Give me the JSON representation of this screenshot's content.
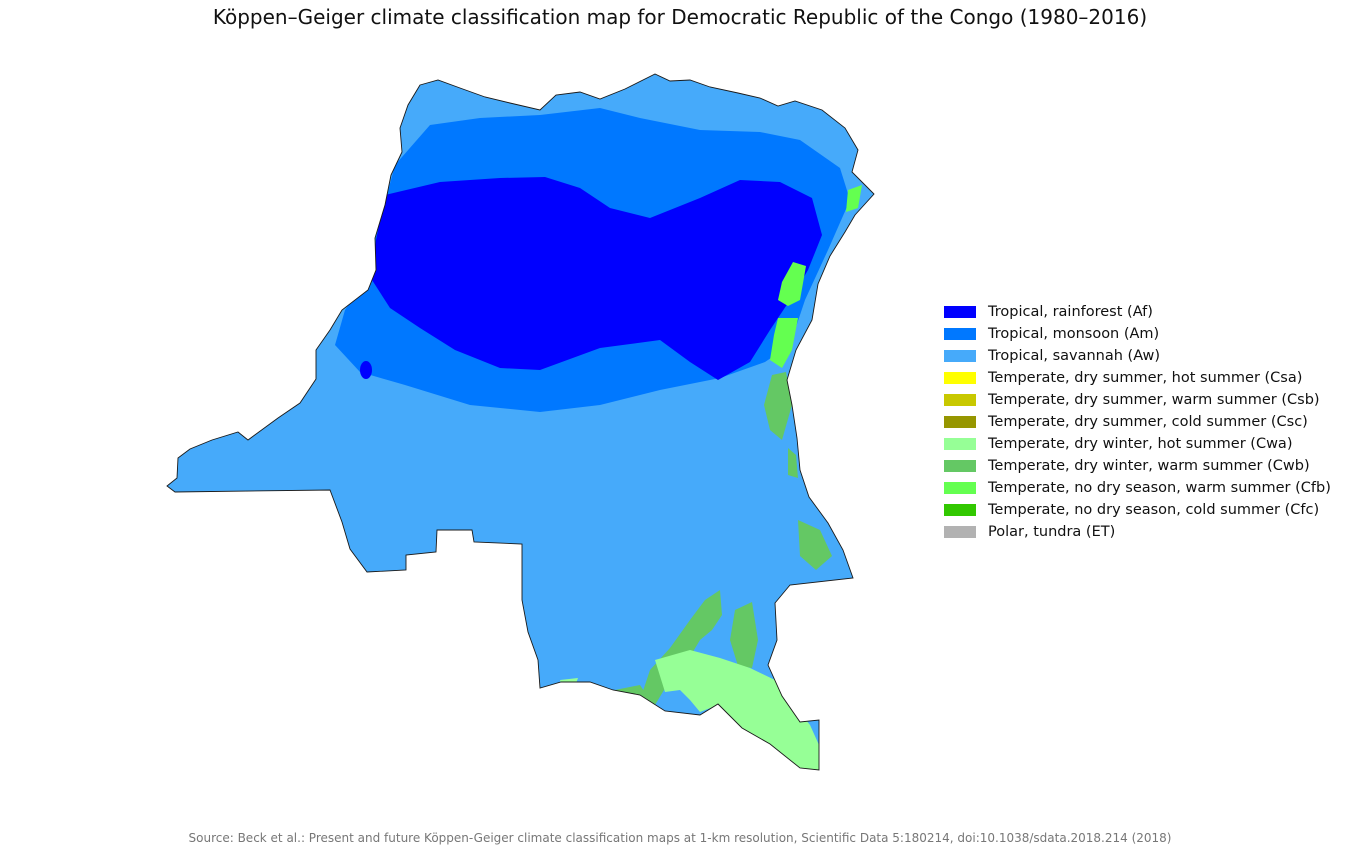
{
  "title": "Köppen–Geiger climate classification map for Democratic Republic of the Congo (1980–2016)",
  "legend": [
    {
      "label": "Tropical, rainforest (Af)",
      "color": "#0000ff"
    },
    {
      "label": "Tropical, monsoon (Am)",
      "color": "#0078ff"
    },
    {
      "label": "Tropical, savannah (Aw)",
      "color": "#46aafa"
    },
    {
      "label": "Temperate, dry summer, hot summer (Csa)",
      "color": "#ffff00"
    },
    {
      "label": "Temperate, dry summer, warm summer (Csb)",
      "color": "#c8c800"
    },
    {
      "label": "Temperate, dry summer, cold summer (Csc)",
      "color": "#969600"
    },
    {
      "label": "Temperate, dry winter, hot summer (Cwa)",
      "color": "#96ff96"
    },
    {
      "label": "Temperate, dry winter, warm summer (Cwb)",
      "color": "#64c864"
    },
    {
      "label": "Temperate, no dry season, warm summer (Cfb)",
      "color": "#64ff50"
    },
    {
      "label": "Temperate, no dry season, cold summer (Cfc)",
      "color": "#32c800"
    },
    {
      "label": "Polar, tundra (ET)",
      "color": "#b2b2b2"
    }
  ],
  "source": "Source: Beck et al.: Present and future Köppen-Geiger climate classification maps at 1-km resolution, Scientific Data 5:180214, doi:10.1038/sdata.2018.214 (2018)"
}
